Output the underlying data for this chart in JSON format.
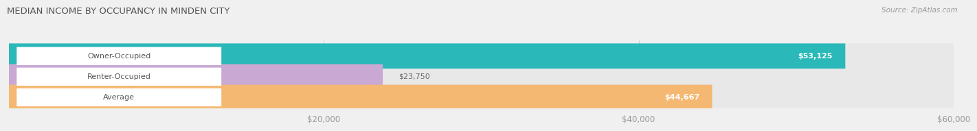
{
  "title": "MEDIAN INCOME BY OCCUPANCY IN MINDEN CITY",
  "source": "Source: ZipAtlas.com",
  "categories": [
    "Owner-Occupied",
    "Renter-Occupied",
    "Average"
  ],
  "values": [
    53125,
    23750,
    44667
  ],
  "bar_colors": [
    "#2ab8b8",
    "#c9a8d4",
    "#f5b872"
  ],
  "value_labels": [
    "$53,125",
    "$23,750",
    "$44,667"
  ],
  "value_label_inside": [
    true,
    false,
    true
  ],
  "value_label_outside_colors": [
    "#888888",
    "#888888",
    "#888888"
  ],
  "xlim": [
    0,
    60000
  ],
  "xticks": [
    20000,
    40000,
    60000
  ],
  "xticklabels": [
    "$20,000",
    "$40,000",
    "$60,000"
  ],
  "bar_height": 0.62,
  "background_color": "#f0f0f0",
  "bar_bg_color": "#e8e8e8"
}
